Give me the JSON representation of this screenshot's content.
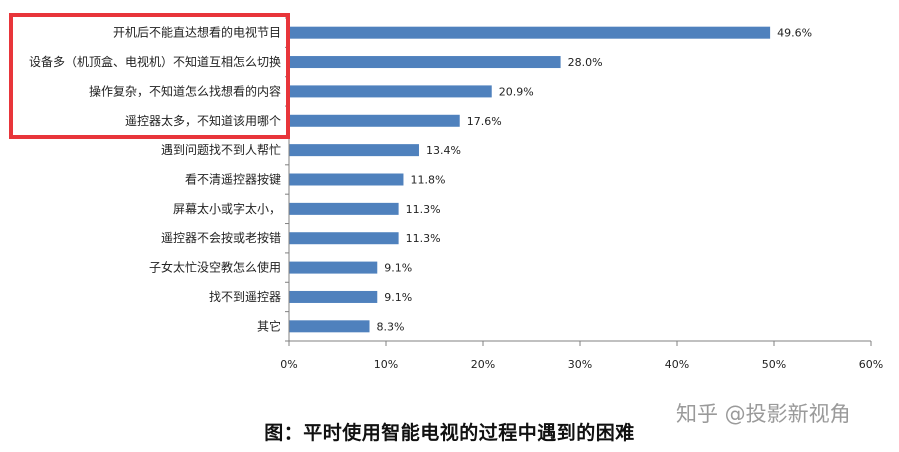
{
  "chart_data": {
    "type": "bar",
    "orientation": "horizontal",
    "categories": [
      "开机后不能直达想看的电视节目",
      "设备多（机顶盒、电视机）不知道互相怎么切换",
      "操作复杂，不知道怎么找想看的内容",
      "遥控器太多，不知道该用哪个",
      "遇到问题找不到人帮忙",
      "看不清遥控器按键",
      "屏幕太小或字太小，",
      "遥控器不会按或老按错",
      "子女太忙没空教怎么使用",
      "找不到遥控器",
      "其它"
    ],
    "values": [
      49.6,
      28.0,
      20.9,
      17.6,
      13.4,
      11.8,
      11.3,
      11.3,
      9.1,
      9.1,
      8.3
    ],
    "value_labels": [
      "49.6%",
      "28.0%",
      "20.9%",
      "17.6%",
      "13.4%",
      "11.8%",
      "11.3%",
      "11.3%",
      "9.1%",
      "9.1%",
      "8.3%"
    ],
    "xlim": [
      0,
      60
    ],
    "x_ticks": [
      "0%",
      "10%",
      "20%",
      "30%",
      "40%",
      "50%",
      "60%"
    ],
    "grid": false,
    "bar_color": "#4f81bd",
    "highlight_color": "#e8353a",
    "highlighted_categories": 4
  },
  "caption": "图：平时使用智能电视的过程中遇到的困难",
  "watermark": "知乎 @投影新视角"
}
